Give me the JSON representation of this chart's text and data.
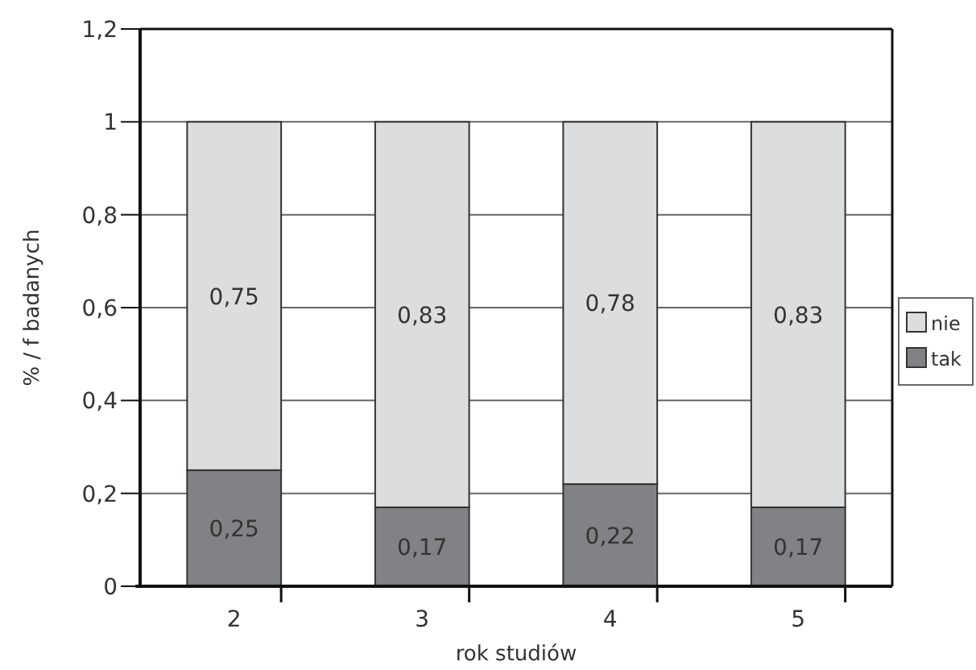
{
  "chart_data": {
    "type": "bar",
    "stacked": true,
    "xlabel": "rok studiów",
    "ylabel": "% / f badanych",
    "categories": [
      "2",
      "3",
      "4",
      "5"
    ],
    "series": [
      {
        "name": "tak",
        "color": "#808285",
        "values": [
          0.25,
          0.17,
          0.22,
          0.17
        ],
        "value_labels": [
          "0,25",
          "0,17",
          "0,22",
          "0,17"
        ]
      },
      {
        "name": "nie",
        "color": "#dcdddf",
        "values": [
          0.75,
          0.83,
          0.78,
          0.83
        ],
        "value_labels": [
          "0,75",
          "0,83",
          "0,78",
          "0,83"
        ]
      }
    ],
    "ylim": [
      0,
      1.2
    ],
    "yticks": [
      0,
      {
        "value": 0.2,
        "label": "0,2"
      },
      {
        "value": 0.4,
        "label": "0,4"
      },
      {
        "value": 0.6,
        "label": "0,6"
      },
      {
        "value": 0.8,
        "label": "0,8"
      },
      1,
      {
        "value": 1.2,
        "label": "1,2"
      }
    ],
    "grid": "y",
    "legend": "right"
  }
}
